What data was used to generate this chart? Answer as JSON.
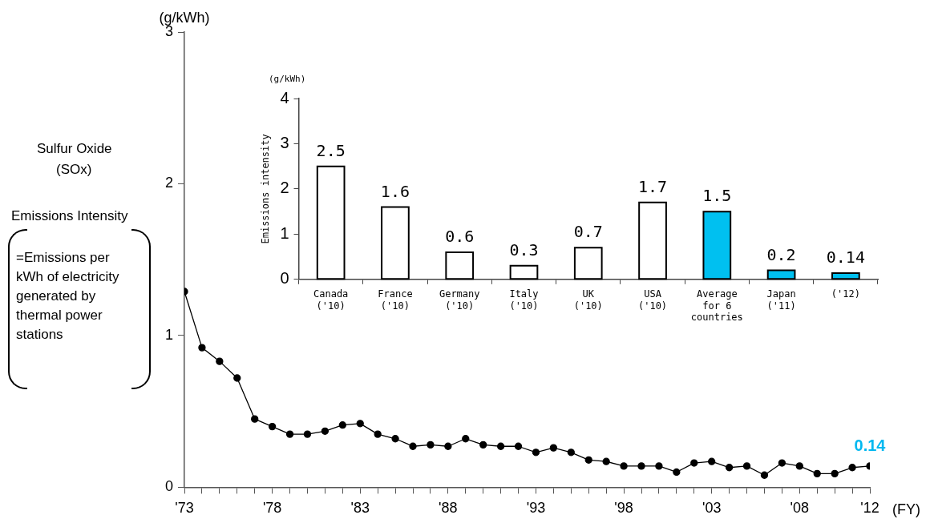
{
  "chart_data": [
    {
      "type": "line",
      "ylabel": "(g/kWh)",
      "xlabel": "(FY)",
      "grid": false,
      "legend": false,
      "marker": "circle",
      "line_style": "solid",
      "annotations": [
        "Sulfur Oxide",
        "(SOx)",
        "Emissions Intensity",
        "=Emissions per kWh of electricity generated by thermal power stations"
      ],
      "x": [
        1973,
        1974,
        1975,
        1976,
        1977,
        1978,
        1979,
        1980,
        1981,
        1982,
        1983,
        1984,
        1985,
        1986,
        1987,
        1988,
        1989,
        1990,
        1991,
        1992,
        1993,
        1994,
        1995,
        1996,
        1997,
        1998,
        1999,
        2000,
        2001,
        2002,
        2003,
        2004,
        2005,
        2006,
        2007,
        2008,
        2009,
        2010,
        2011,
        2012
      ],
      "series": [
        {
          "color": "#000000",
          "values": [
            1.29,
            0.92,
            0.83,
            0.72,
            0.45,
            0.4,
            0.35,
            0.35,
            0.37,
            0.41,
            0.42,
            0.35,
            0.32,
            0.27,
            0.28,
            0.27,
            0.32,
            0.28,
            0.27,
            0.27,
            0.23,
            0.26,
            0.23,
            0.18,
            0.17,
            0.14,
            0.14,
            0.14,
            0.1,
            0.16,
            0.17,
            0.13,
            0.14,
            0.08,
            0.16,
            0.14,
            0.09,
            0.09,
            0.13,
            0.14
          ],
          "value_labels": [
            null,
            null,
            null,
            null,
            null,
            null,
            null,
            null,
            null,
            null,
            null,
            null,
            null,
            null,
            null,
            null,
            null,
            null,
            null,
            null,
            null,
            null,
            null,
            null,
            null,
            null,
            null,
            null,
            null,
            null,
            null,
            null,
            null,
            null,
            null,
            null,
            null,
            null,
            null,
            "0.14"
          ]
        }
      ],
      "xlim": [
        1973,
        2012
      ],
      "xticks": [
        {
          "value": 1973,
          "label": "'73"
        },
        {
          "value": 1974,
          "label": null
        },
        {
          "value": 1975,
          "label": null
        },
        {
          "value": 1976,
          "label": null
        },
        {
          "value": 1977,
          "label": null
        },
        {
          "value": 1978,
          "label": "'78"
        },
        {
          "value": 1979,
          "label": null
        },
        {
          "value": 1980,
          "label": null
        },
        {
          "value": 1981,
          "label": null
        },
        {
          "value": 1982,
          "label": null
        },
        {
          "value": 1983,
          "label": "'83"
        },
        {
          "value": 1984,
          "label": null
        },
        {
          "value": 1985,
          "label": null
        },
        {
          "value": 1986,
          "label": null
        },
        {
          "value": 1987,
          "label": null
        },
        {
          "value": 1988,
          "label": "'88"
        },
        {
          "value": 1989,
          "label": null
        },
        {
          "value": 1990,
          "label": null
        },
        {
          "value": 1991,
          "label": null
        },
        {
          "value": 1992,
          "label": null
        },
        {
          "value": 1993,
          "label": "'93"
        },
        {
          "value": 1994,
          "label": null
        },
        {
          "value": 1995,
          "label": null
        },
        {
          "value": 1996,
          "label": null
        },
        {
          "value": 1997,
          "label": null
        },
        {
          "value": 1998,
          "label": "'98"
        },
        {
          "value": 1999,
          "label": null
        },
        {
          "value": 2000,
          "label": null
        },
        {
          "value": 2001,
          "label": null
        },
        {
          "value": 2002,
          "label": null
        },
        {
          "value": 2003,
          "label": "'03"
        },
        {
          "value": 2004,
          "label": null
        },
        {
          "value": 2005,
          "label": null
        },
        {
          "value": 2006,
          "label": null
        },
        {
          "value": 2007,
          "label": null
        },
        {
          "value": 2008,
          "label": "'08"
        },
        {
          "value": 2009,
          "label": null
        },
        {
          "value": 2010,
          "label": null
        },
        {
          "value": 2011,
          "label": null
        },
        {
          "value": 2012,
          "label": "'12"
        }
      ],
      "ylim": [
        0,
        3
      ],
      "yticks": [
        0,
        1,
        2,
        3
      ]
    },
    {
      "type": "bar",
      "ylabel": "Emissions intensity",
      "grid": false,
      "legend": false,
      "data_labels": true,
      "annotations": [
        "(g/kWh)"
      ],
      "categories": [
        "Canada\n('10)",
        "France\n('10)",
        "Germany\n('10)",
        "Italy\n('10)",
        "UK\n('10)",
        "USA\n('10)",
        "Average\nfor 6\ncountries",
        "Japan\n('11)",
        "('12)"
      ],
      "values": [
        2.5,
        1.6,
        0.6,
        0.3,
        0.7,
        1.7,
        1.5,
        0.2,
        0.14
      ],
      "colors": [
        "#ffffff",
        "#ffffff",
        "#ffffff",
        "#ffffff",
        "#ffffff",
        "#ffffff",
        "#00c0f0",
        "#00c0f0",
        "#00c0f0"
      ],
      "ylim": [
        0,
        4
      ],
      "yticks": [
        0,
        1,
        2,
        3,
        4
      ]
    }
  ]
}
